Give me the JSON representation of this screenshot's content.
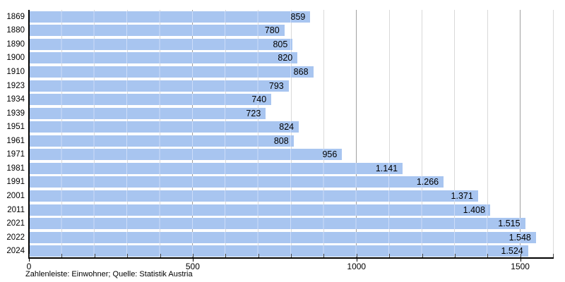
{
  "chart_data": {
    "type": "bar",
    "orientation": "horizontal",
    "title": "",
    "xlabel": "",
    "ylabel": "",
    "categories": [
      "1869",
      "1880",
      "1890",
      "1900",
      "1910",
      "1923",
      "1934",
      "1939",
      "1951",
      "1961",
      "1971",
      "1981",
      "1991",
      "2001",
      "2011",
      "2021",
      "2022",
      "2024"
    ],
    "values": [
      859,
      780,
      805,
      820,
      868,
      793,
      740,
      723,
      824,
      808,
      956,
      1141,
      1266,
      1371,
      1408,
      1515,
      1548,
      1524
    ],
    "value_labels": [
      "859",
      "780",
      "805",
      "820",
      "868",
      "793",
      "740",
      "723",
      "824",
      "808",
      "956",
      "1.141",
      "1.266",
      "1.371",
      "1.408",
      "1.515",
      "1.548",
      "1.524"
    ],
    "xlim": [
      0,
      1600
    ],
    "x_tick_values": [
      0,
      500,
      1000,
      1500
    ],
    "x_tick_labels": [
      "0",
      "500",
      "1000",
      "1500"
    ],
    "minor_grid_interval": 100,
    "grid": true,
    "legend_position": "none",
    "footer": "Zahlenleiste: Einwohner; Quelle: Statistik Austria",
    "colors": {
      "bar": "#a8c5f0",
      "bar_stripe": "#ccdcf8",
      "grid_minor": "#d9d9d9",
      "grid_major": "#a0a0a0",
      "axis": "#000000",
      "text": "#000000",
      "background": "#ffffff"
    }
  }
}
